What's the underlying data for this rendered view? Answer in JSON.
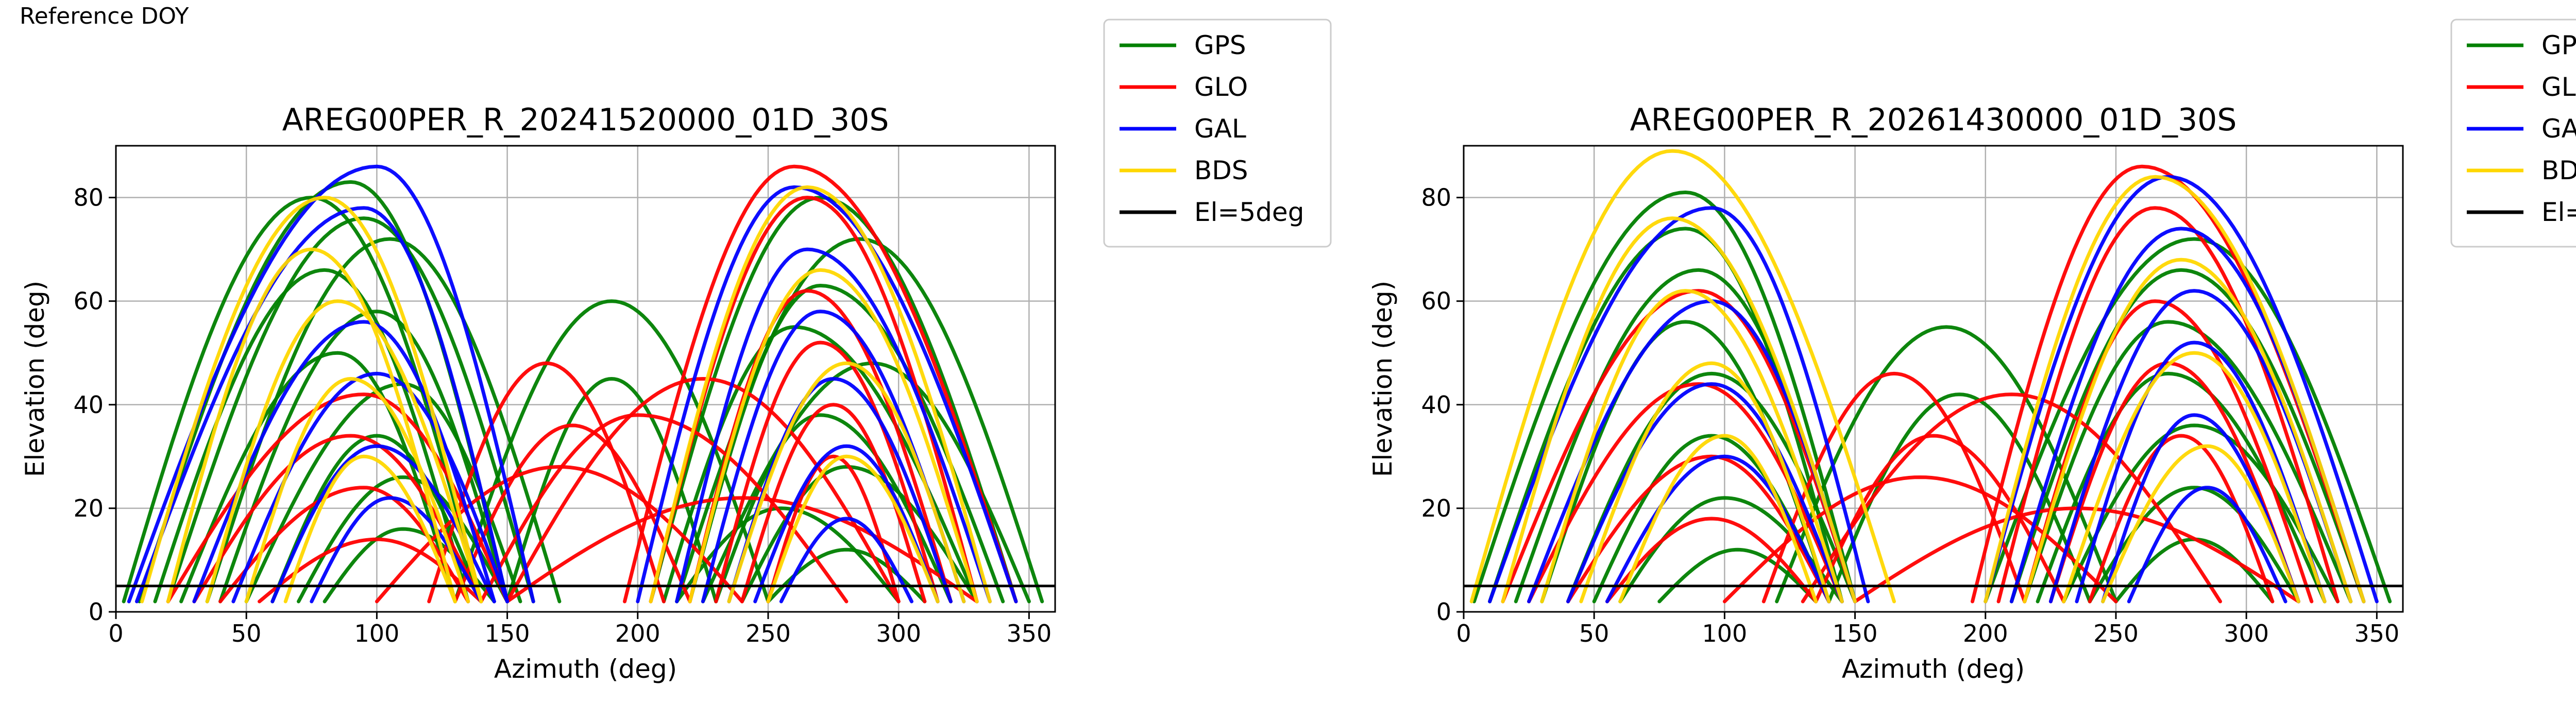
{
  "figure": {
    "title": "Reference DOY"
  },
  "legend": {
    "entries": [
      {
        "label": "GPS",
        "color": "#008000"
      },
      {
        "label": "GLO",
        "color": "#ff0000"
      },
      {
        "label": "GAL",
        "color": "#0000ff"
      },
      {
        "label": "BDS",
        "color": "#ffd700"
      },
      {
        "label": "El=5deg",
        "color": "#000000"
      }
    ]
  },
  "chart_data": [
    {
      "type": "scatter",
      "title": "AREG00PER_R_20241520000_01D_30S",
      "xlabel": "Azimuth (deg)",
      "ylabel": "Elevation (deg)",
      "xlim": [
        0,
        360
      ],
      "ylim": [
        0,
        90
      ],
      "xticks": [
        0,
        50,
        100,
        150,
        200,
        250,
        300,
        350
      ],
      "yticks": [
        0,
        20,
        40,
        60,
        80
      ],
      "grid": true,
      "legend_position": "outside-right",
      "elevation_mask_deg": 5,
      "series": [
        {
          "name": "GPS",
          "color": "#008000",
          "passes": [
            {
              "rise": 9,
              "set": 150,
              "peak_az": 90,
              "peak_el": 83
            },
            {
              "rise": 3,
              "set": 140,
              "peak_az": 75,
              "peak_el": 80
            },
            {
              "rise": 20,
              "set": 160,
              "peak_az": 95,
              "peak_el": 76
            },
            {
              "rise": 35,
              "set": 170,
              "peak_az": 105,
              "peak_el": 72
            },
            {
              "rise": 15,
              "set": 135,
              "peak_az": 80,
              "peak_el": 66
            },
            {
              "rise": 40,
              "set": 150,
              "peak_az": 100,
              "peak_el": 58
            },
            {
              "rise": 25,
              "set": 130,
              "peak_az": 85,
              "peak_el": 50
            },
            {
              "rise": 50,
              "set": 155,
              "peak_az": 110,
              "peak_el": 44
            },
            {
              "rise": 60,
              "set": 140,
              "peak_az": 100,
              "peak_el": 34
            },
            {
              "rise": 70,
              "set": 150,
              "peak_az": 110,
              "peak_el": 26
            },
            {
              "rise": 80,
              "set": 145,
              "peak_az": 110,
              "peak_el": 16
            },
            {
              "rise": 205,
              "set": 345,
              "peak_az": 270,
              "peak_el": 80
            },
            {
              "rise": 215,
              "set": 355,
              "peak_az": 285,
              "peak_el": 72
            },
            {
              "rise": 220,
              "set": 340,
              "peak_az": 270,
              "peak_el": 63
            },
            {
              "rise": 210,
              "set": 330,
              "peak_az": 260,
              "peak_el": 55
            },
            {
              "rise": 225,
              "set": 350,
              "peak_az": 290,
              "peak_el": 48
            },
            {
              "rise": 230,
              "set": 320,
              "peak_az": 270,
              "peak_el": 38
            },
            {
              "rise": 240,
              "set": 330,
              "peak_az": 280,
              "peak_el": 28
            },
            {
              "rise": 215,
              "set": 300,
              "peak_az": 255,
              "peak_el": 20
            },
            {
              "rise": 250,
              "set": 310,
              "peak_az": 280,
              "peak_el": 12
            },
            {
              "rise": 130,
              "set": 250,
              "peak_az": 190,
              "peak_el": 60
            },
            {
              "rise": 150,
              "set": 230,
              "peak_az": 190,
              "peak_el": 45
            }
          ]
        },
        {
          "name": "GLO",
          "color": "#ff0000",
          "passes": [
            {
              "rise": 195,
              "set": 345,
              "peak_az": 260,
              "peak_el": 86
            },
            {
              "rise": 205,
              "set": 330,
              "peak_az": 265,
              "peak_el": 80
            },
            {
              "rise": 220,
              "set": 320,
              "peak_az": 265,
              "peak_el": 62
            },
            {
              "rise": 230,
              "set": 315,
              "peak_az": 270,
              "peak_el": 52
            },
            {
              "rise": 240,
              "set": 310,
              "peak_az": 275,
              "peak_el": 40
            },
            {
              "rise": 250,
              "set": 300,
              "peak_az": 275,
              "peak_el": 30
            },
            {
              "rise": 20,
              "set": 150,
              "peak_az": 95,
              "peak_el": 42
            },
            {
              "rise": 30,
              "set": 140,
              "peak_az": 90,
              "peak_el": 34
            },
            {
              "rise": 40,
              "set": 135,
              "peak_az": 95,
              "peak_el": 24
            },
            {
              "rise": 55,
              "set": 140,
              "peak_az": 100,
              "peak_el": 14
            },
            {
              "rise": 150,
              "set": 300,
              "peak_az": 225,
              "peak_el": 45
            },
            {
              "rise": 140,
              "set": 280,
              "peak_az": 200,
              "peak_el": 38
            },
            {
              "rise": 120,
              "set": 210,
              "peak_az": 165,
              "peak_el": 48
            },
            {
              "rise": 130,
              "set": 220,
              "peak_az": 175,
              "peak_el": 36
            },
            {
              "rise": 100,
              "set": 240,
              "peak_az": 170,
              "peak_el": 28
            },
            {
              "rise": 150,
              "set": 330,
              "peak_az": 240,
              "peak_el": 22
            }
          ]
        },
        {
          "name": "GAL",
          "color": "#0000ff",
          "passes": [
            {
              "rise": 5,
              "set": 160,
              "peak_az": 100,
              "peak_el": 86
            },
            {
              "rise": 8,
              "set": 150,
              "peak_az": 95,
              "peak_el": 78
            },
            {
              "rise": 30,
              "set": 145,
              "peak_az": 95,
              "peak_el": 56
            },
            {
              "rise": 45,
              "set": 150,
              "peak_az": 100,
              "peak_el": 46
            },
            {
              "rise": 60,
              "set": 145,
              "peak_az": 100,
              "peak_el": 32
            },
            {
              "rise": 75,
              "set": 140,
              "peak_az": 105,
              "peak_el": 22
            },
            {
              "rise": 200,
              "set": 345,
              "peak_az": 260,
              "peak_el": 82
            },
            {
              "rise": 215,
              "set": 335,
              "peak_az": 265,
              "peak_el": 70
            },
            {
              "rise": 225,
              "set": 325,
              "peak_az": 270,
              "peak_el": 58
            },
            {
              "rise": 235,
              "set": 320,
              "peak_az": 275,
              "peak_el": 45
            },
            {
              "rise": 245,
              "set": 315,
              "peak_az": 280,
              "peak_el": 32
            },
            {
              "rise": 255,
              "set": 305,
              "peak_az": 280,
              "peak_el": 18
            }
          ]
        },
        {
          "name": "BDS",
          "color": "#ffd700",
          "passes": [
            {
              "rise": 10,
              "set": 140,
              "peak_az": 80,
              "peak_el": 80
            },
            {
              "rise": 20,
              "set": 130,
              "peak_az": 75,
              "peak_el": 70
            },
            {
              "rise": 35,
              "set": 140,
              "peak_az": 85,
              "peak_el": 60
            },
            {
              "rise": 50,
              "set": 135,
              "peak_az": 90,
              "peak_el": 45
            },
            {
              "rise": 65,
              "set": 130,
              "peak_az": 95,
              "peak_el": 30
            },
            {
              "rise": 205,
              "set": 335,
              "peak_az": 265,
              "peak_el": 82
            },
            {
              "rise": 220,
              "set": 330,
              "peak_az": 270,
              "peak_el": 66
            },
            {
              "rise": 235,
              "set": 325,
              "peak_az": 280,
              "peak_el": 48
            },
            {
              "rise": 250,
              "set": 315,
              "peak_az": 280,
              "peak_el": 30
            }
          ]
        },
        {
          "name": "El=5deg",
          "color": "#000000",
          "passes": []
        }
      ]
    },
    {
      "type": "scatter",
      "title": "AREG00PER_R_20261430000_01D_30S",
      "xlabel": "Azimuth (deg)",
      "ylabel": "Elevation (deg)",
      "xlim": [
        0,
        360
      ],
      "ylim": [
        0,
        90
      ],
      "xticks": [
        0,
        50,
        100,
        150,
        200,
        250,
        300,
        350
      ],
      "yticks": [
        0,
        20,
        40,
        60,
        80
      ],
      "grid": true,
      "legend_position": "outside-right",
      "elevation_mask_deg": 5,
      "series": [
        {
          "name": "GPS",
          "color": "#008000",
          "passes": [
            {
              "rise": 4,
              "set": 150,
              "peak_az": 85,
              "peak_el": 81
            },
            {
              "rise": 10,
              "set": 145,
              "peak_az": 85,
              "peak_el": 74
            },
            {
              "rise": 20,
              "set": 150,
              "peak_az": 90,
              "peak_el": 66
            },
            {
              "rise": 30,
              "set": 140,
              "peak_az": 85,
              "peak_el": 56
            },
            {
              "rise": 40,
              "set": 150,
              "peak_az": 95,
              "peak_el": 46
            },
            {
              "rise": 50,
              "set": 140,
              "peak_az": 95,
              "peak_el": 34
            },
            {
              "rise": 60,
              "set": 145,
              "peak_az": 100,
              "peak_el": 22
            },
            {
              "rise": 75,
              "set": 135,
              "peak_az": 105,
              "peak_el": 12
            },
            {
              "rise": 200,
              "set": 355,
              "peak_az": 280,
              "peak_el": 72
            },
            {
              "rise": 210,
              "set": 345,
              "peak_az": 275,
              "peak_el": 66
            },
            {
              "rise": 215,
              "set": 340,
              "peak_az": 270,
              "peak_el": 56
            },
            {
              "rise": 220,
              "set": 330,
              "peak_az": 270,
              "peak_el": 46
            },
            {
              "rise": 230,
              "set": 335,
              "peak_az": 280,
              "peak_el": 36
            },
            {
              "rise": 240,
              "set": 320,
              "peak_az": 280,
              "peak_el": 24
            },
            {
              "rise": 250,
              "set": 310,
              "peak_az": 280,
              "peak_el": 14
            },
            {
              "rise": 120,
              "set": 250,
              "peak_az": 185,
              "peak_el": 55
            },
            {
              "rise": 140,
              "set": 240,
              "peak_az": 190,
              "peak_el": 42
            }
          ]
        },
        {
          "name": "GLO",
          "color": "#ff0000",
          "passes": [
            {
              "rise": 195,
              "set": 345,
              "peak_az": 260,
              "peak_el": 86
            },
            {
              "rise": 205,
              "set": 335,
              "peak_az": 265,
              "peak_el": 78
            },
            {
              "rise": 215,
              "set": 325,
              "peak_az": 265,
              "peak_el": 60
            },
            {
              "rise": 225,
              "set": 320,
              "peak_az": 270,
              "peak_el": 48
            },
            {
              "rise": 240,
              "set": 310,
              "peak_az": 275,
              "peak_el": 34
            },
            {
              "rise": 15,
              "set": 150,
              "peak_az": 90,
              "peak_el": 62
            },
            {
              "rise": 25,
              "set": 145,
              "peak_az": 90,
              "peak_el": 44
            },
            {
              "rise": 40,
              "set": 140,
              "peak_az": 95,
              "peak_el": 30
            },
            {
              "rise": 55,
              "set": 135,
              "peak_az": 95,
              "peak_el": 18
            },
            {
              "rise": 130,
              "set": 290,
              "peak_az": 210,
              "peak_el": 42
            },
            {
              "rise": 115,
              "set": 215,
              "peak_az": 165,
              "peak_el": 46
            },
            {
              "rise": 135,
              "set": 230,
              "peak_az": 180,
              "peak_el": 34
            },
            {
              "rise": 100,
              "set": 250,
              "peak_az": 175,
              "peak_el": 26
            },
            {
              "rise": 150,
              "set": 320,
              "peak_az": 235,
              "peak_el": 20
            }
          ]
        },
        {
          "name": "GAL",
          "color": "#0000ff",
          "passes": [
            {
              "rise": 10,
              "set": 155,
              "peak_az": 95,
              "peak_el": 78
            },
            {
              "rise": 25,
              "set": 150,
              "peak_az": 95,
              "peak_el": 60
            },
            {
              "rise": 40,
              "set": 145,
              "peak_az": 95,
              "peak_el": 44
            },
            {
              "rise": 55,
              "set": 140,
              "peak_az": 100,
              "peak_el": 30
            },
            {
              "rise": 200,
              "set": 350,
              "peak_az": 270,
              "peak_el": 84
            },
            {
              "rise": 210,
              "set": 345,
              "peak_az": 275,
              "peak_el": 74
            },
            {
              "rise": 225,
              "set": 340,
              "peak_az": 280,
              "peak_el": 62
            },
            {
              "rise": 235,
              "set": 330,
              "peak_az": 280,
              "peak_el": 52
            },
            {
              "rise": 245,
              "set": 320,
              "peak_az": 280,
              "peak_el": 38
            },
            {
              "rise": 255,
              "set": 315,
              "peak_az": 285,
              "peak_el": 24
            }
          ]
        },
        {
          "name": "BDS",
          "color": "#ffd700",
          "passes": [
            {
              "rise": 3,
              "set": 165,
              "peak_az": 80,
              "peak_el": 89
            },
            {
              "rise": 15,
              "set": 150,
              "peak_az": 80,
              "peak_el": 76
            },
            {
              "rise": 30,
              "set": 145,
              "peak_az": 85,
              "peak_el": 62
            },
            {
              "rise": 45,
              "set": 140,
              "peak_az": 95,
              "peak_el": 48
            },
            {
              "rise": 60,
              "set": 135,
              "peak_az": 100,
              "peak_el": 34
            },
            {
              "rise": 200,
              "set": 345,
              "peak_az": 265,
              "peak_el": 84
            },
            {
              "rise": 215,
              "set": 340,
              "peak_az": 275,
              "peak_el": 68
            },
            {
              "rise": 230,
              "set": 330,
              "peak_az": 280,
              "peak_el": 50
            },
            {
              "rise": 245,
              "set": 320,
              "peak_az": 285,
              "peak_el": 32
            }
          ]
        },
        {
          "name": "El=5deg",
          "color": "#000000",
          "passes": []
        }
      ]
    }
  ]
}
